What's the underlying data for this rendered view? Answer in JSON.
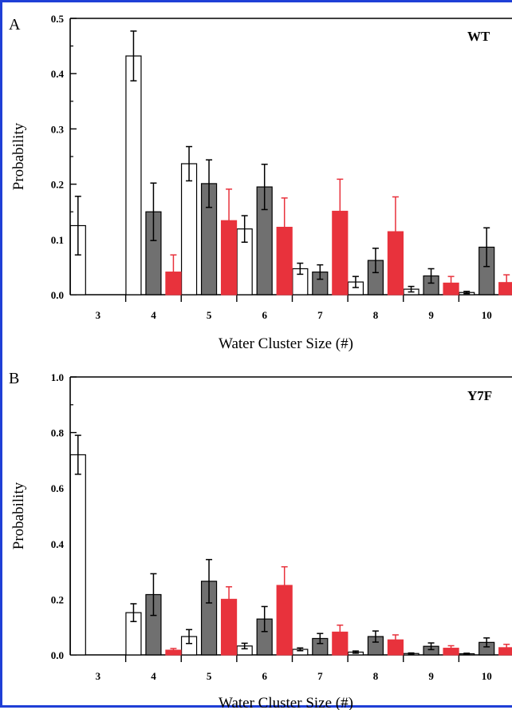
{
  "colors": {
    "frame": "#1f3fd6",
    "series": [
      "#ffffff",
      "#707070",
      "#e8323c"
    ],
    "series_stroke": [
      "#000000",
      "#000000",
      "#e8323c"
    ],
    "error_bar": [
      "#000000",
      "#000000",
      "#e8323c"
    ]
  },
  "chart_data": [
    {
      "type": "bar",
      "panel_letter": "A",
      "tag": "WT",
      "title": "",
      "xlabel": "Water Cluster Size (#)",
      "ylabel": "Probability",
      "ylim": [
        0,
        0.5
      ],
      "yticks": [
        "0.0",
        "0.1",
        "0.2",
        "0.3",
        "0.4",
        "0.5"
      ],
      "ytick_values": [
        0,
        0.1,
        0.2,
        0.3,
        0.4,
        0.5
      ],
      "grid": false,
      "categories": [
        "3",
        "4",
        "5",
        "6",
        "7",
        "8",
        "9",
        "10"
      ],
      "series": [
        {
          "values": [
            0.125,
            0.432,
            0.237,
            0.119,
            0.047,
            0.023,
            0.01,
            0.004
          ],
          "errors": [
            0.053,
            0.045,
            0.031,
            0.024,
            0.01,
            0.01,
            0.005,
            0.002
          ]
        },
        {
          "values": [
            0,
            0.15,
            0.201,
            0.195,
            0.041,
            0.062,
            0.034,
            0.086
          ],
          "errors": [
            0,
            0.052,
            0.043,
            0.041,
            0.013,
            0.022,
            0.013,
            0.035
          ]
        },
        {
          "values": [
            0,
            0.041,
            0.134,
            0.122,
            0.151,
            0.114,
            0.021,
            0.022
          ],
          "errors": [
            0,
            0.031,
            0.057,
            0.053,
            0.058,
            0.063,
            0.012,
            0.014
          ]
        }
      ]
    },
    {
      "type": "bar",
      "panel_letter": "B",
      "tag": "Y7F",
      "title": "",
      "xlabel": "Water Cluster Size (#)",
      "ylabel": "Probability",
      "ylim": [
        0,
        1.0
      ],
      "yticks": [
        "0.0",
        "0.2",
        "0.4",
        "0.6",
        "0.8",
        "1.0"
      ],
      "ytick_values": [
        0,
        0.2,
        0.4,
        0.6,
        0.8,
        1.0
      ],
      "grid": false,
      "categories": [
        "3",
        "4",
        "5",
        "6",
        "7",
        "8",
        "9",
        "10"
      ],
      "series": [
        {
          "values": [
            0.72,
            0.152,
            0.066,
            0.032,
            0.02,
            0.01,
            0.005,
            0.004
          ],
          "errors": [
            0.07,
            0.032,
            0.025,
            0.01,
            0.005,
            0.004,
            0.002,
            0.002
          ]
        },
        {
          "values": [
            0,
            0.217,
            0.265,
            0.129,
            0.059,
            0.066,
            0.031,
            0.045
          ],
          "errors": [
            0,
            0.075,
            0.078,
            0.045,
            0.018,
            0.02,
            0.012,
            0.016
          ]
        },
        {
          "values": [
            0,
            0.017,
            0.2,
            0.25,
            0.082,
            0.054,
            0.024,
            0.026
          ],
          "errors": [
            0,
            0.006,
            0.045,
            0.067,
            0.025,
            0.018,
            0.009,
            0.012
          ]
        }
      ]
    }
  ]
}
